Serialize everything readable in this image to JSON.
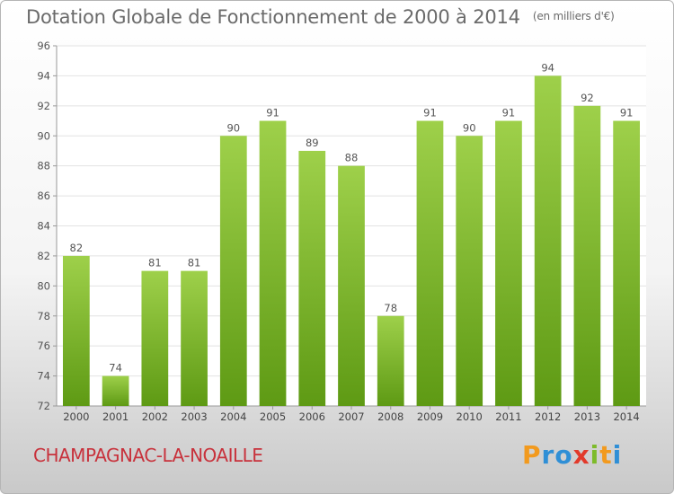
{
  "chart_data": {
    "type": "bar",
    "title": "Dotation Globale de Fonctionnement de 2000 à 2014",
    "unit": "(en milliers d'€)",
    "categories": [
      "2000",
      "2001",
      "2002",
      "2003",
      "2004",
      "2005",
      "2006",
      "2007",
      "2008",
      "2009",
      "2010",
      "2011",
      "2012",
      "2013",
      "2014"
    ],
    "values": [
      82,
      74,
      81,
      81,
      90,
      91,
      89,
      88,
      78,
      91,
      90,
      91,
      94,
      92,
      91
    ],
    "ylim": [
      72,
      96
    ],
    "yticks": [
      72,
      74,
      76,
      78,
      80,
      82,
      84,
      86,
      88,
      90,
      92,
      94,
      96
    ],
    "grid": true,
    "bar_color_top": "#9ed04a",
    "bar_color_bottom": "#5e9a14"
  },
  "commune": "CHAMPAGNAC-LA-NOAILLE",
  "logo": {
    "text": "Proxiti",
    "letters": [
      {
        "ch": "P",
        "color": "#f29a1e"
      },
      {
        "ch": "r",
        "color": "#2f8fd6"
      },
      {
        "ch": "o",
        "color": "#2f8fd6"
      },
      {
        "ch": "x",
        "color": "#e23a2b"
      },
      {
        "ch": "i",
        "color": "#7dbb2a"
      },
      {
        "ch": "t",
        "color": "#f29a1e"
      },
      {
        "ch": "i",
        "color": "#2f8fd6"
      }
    ]
  }
}
